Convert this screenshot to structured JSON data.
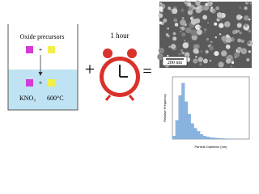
{
  "beaker": {
    "label": "Oxide precursors",
    "plus_top": "+",
    "plus_bottom": "+",
    "salt": "KNO₃",
    "temperature": "600°C"
  },
  "operators": {
    "plus": "+",
    "equals": "="
  },
  "clock": {
    "label": "1 hour"
  },
  "sem_image": {
    "scale_bar": "200 nm"
  },
  "histogram": {
    "y_label": "Relative Frequency",
    "x_label": "Particle Diameter (nm)",
    "color": "#8ab4e0",
    "bins": [
      0,
      40,
      80,
      120,
      160,
      200,
      240,
      280,
      320,
      360,
      400,
      440,
      480,
      520,
      560,
      600,
      640,
      680,
      720,
      760,
      800,
      840,
      880,
      920,
      960,
      1000
    ],
    "counts": [
      0.01,
      0.06,
      0.14,
      0.18,
      0.12,
      0.08,
      0.05,
      0.035,
      0.025,
      0.015,
      0.01,
      0.007,
      0.005,
      0.004,
      0.003,
      0.002,
      0.002,
      0.001,
      0.001,
      0.001,
      0,
      0,
      0,
      0,
      0
    ],
    "xlim": [
      0,
      1000
    ],
    "ylim": [
      0,
      0.2
    ]
  }
}
